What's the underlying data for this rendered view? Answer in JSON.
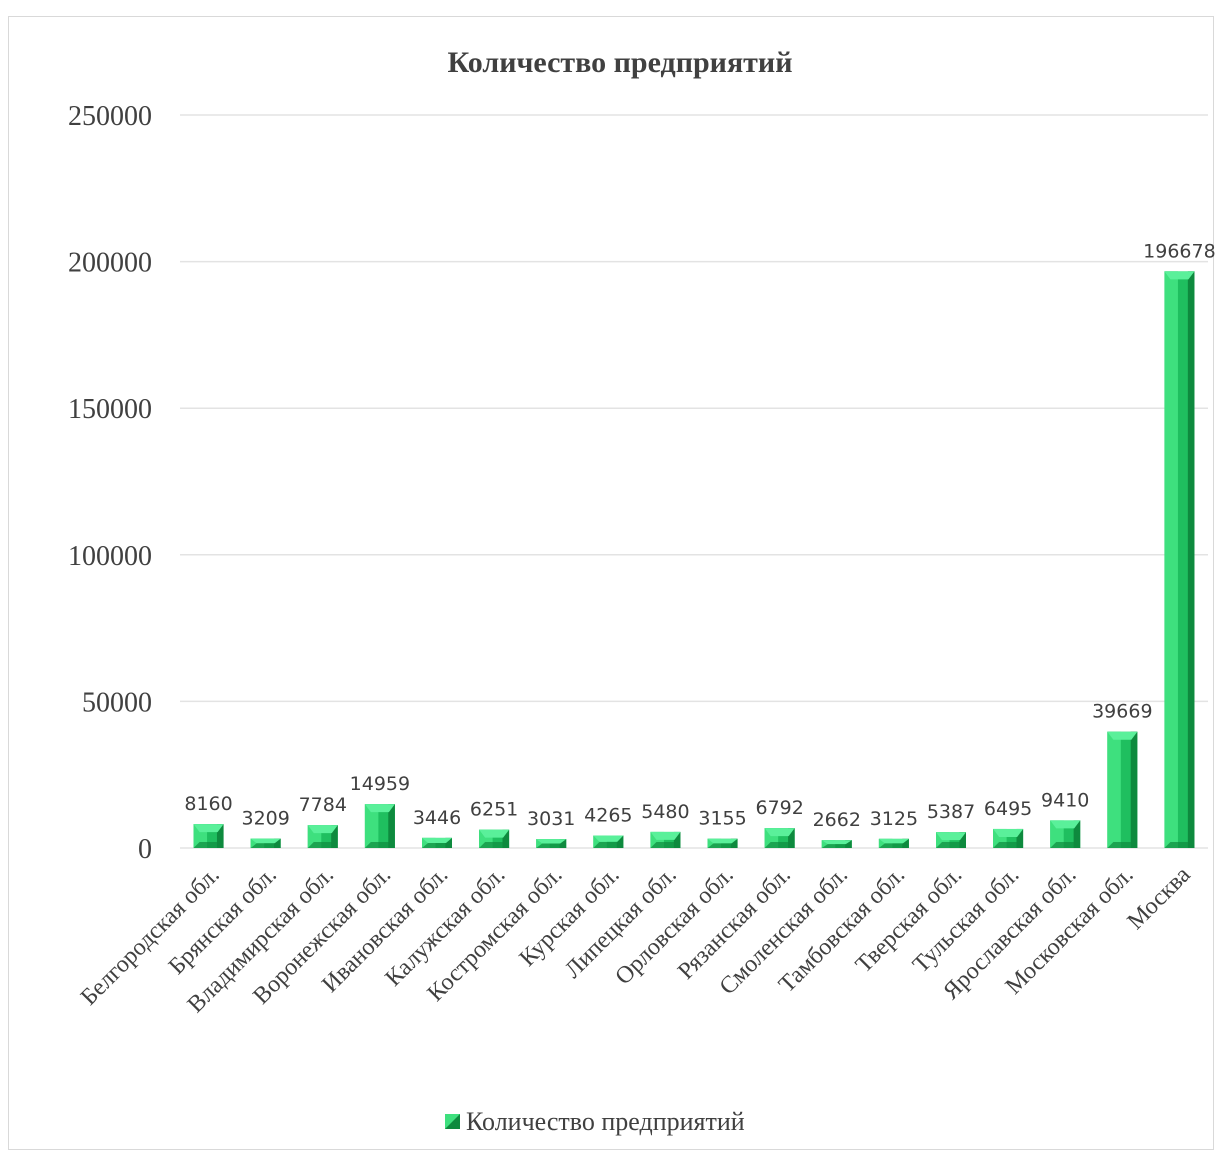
{
  "chart_data": {
    "type": "bar",
    "title": "Количество предприятий",
    "categories": [
      "Белгородская обл.",
      "Брянская обл.",
      "Владимирская обл.",
      "Воронежская обл.",
      "Ивановская обл.",
      "Калужская обл.",
      "Костромская обл.",
      "Курская обл.",
      "Липецкая обл.",
      "Орловская обл.",
      "Рязанская обл.",
      "Смоленская обл.",
      "Тамбовская обл.",
      "Тверская обл.",
      "Тульская обл.",
      "Ярославская обл.",
      "Московская обл.",
      "Москва"
    ],
    "series": [
      {
        "name": "Количество предприятий",
        "values": [
          8160,
          3209,
          7784,
          14959,
          3446,
          6251,
          3031,
          4265,
          5480,
          3155,
          6792,
          2662,
          3125,
          5387,
          6495,
          9410,
          39669,
          196678
        ]
      }
    ],
    "ylim": [
      0,
      250000
    ],
    "yticks": [
      "0",
      "50000",
      "100000",
      "150000",
      "200000",
      "250000"
    ],
    "grid": true,
    "legend_position": "bottom",
    "colors": {
      "bar_light": "#3ee07e",
      "bar_mid": "#1fbf5f",
      "bar_dark": "#0e8a3e",
      "bar_top": "#5af09a",
      "text": "#404040",
      "grid": "#e3e3e3"
    }
  }
}
